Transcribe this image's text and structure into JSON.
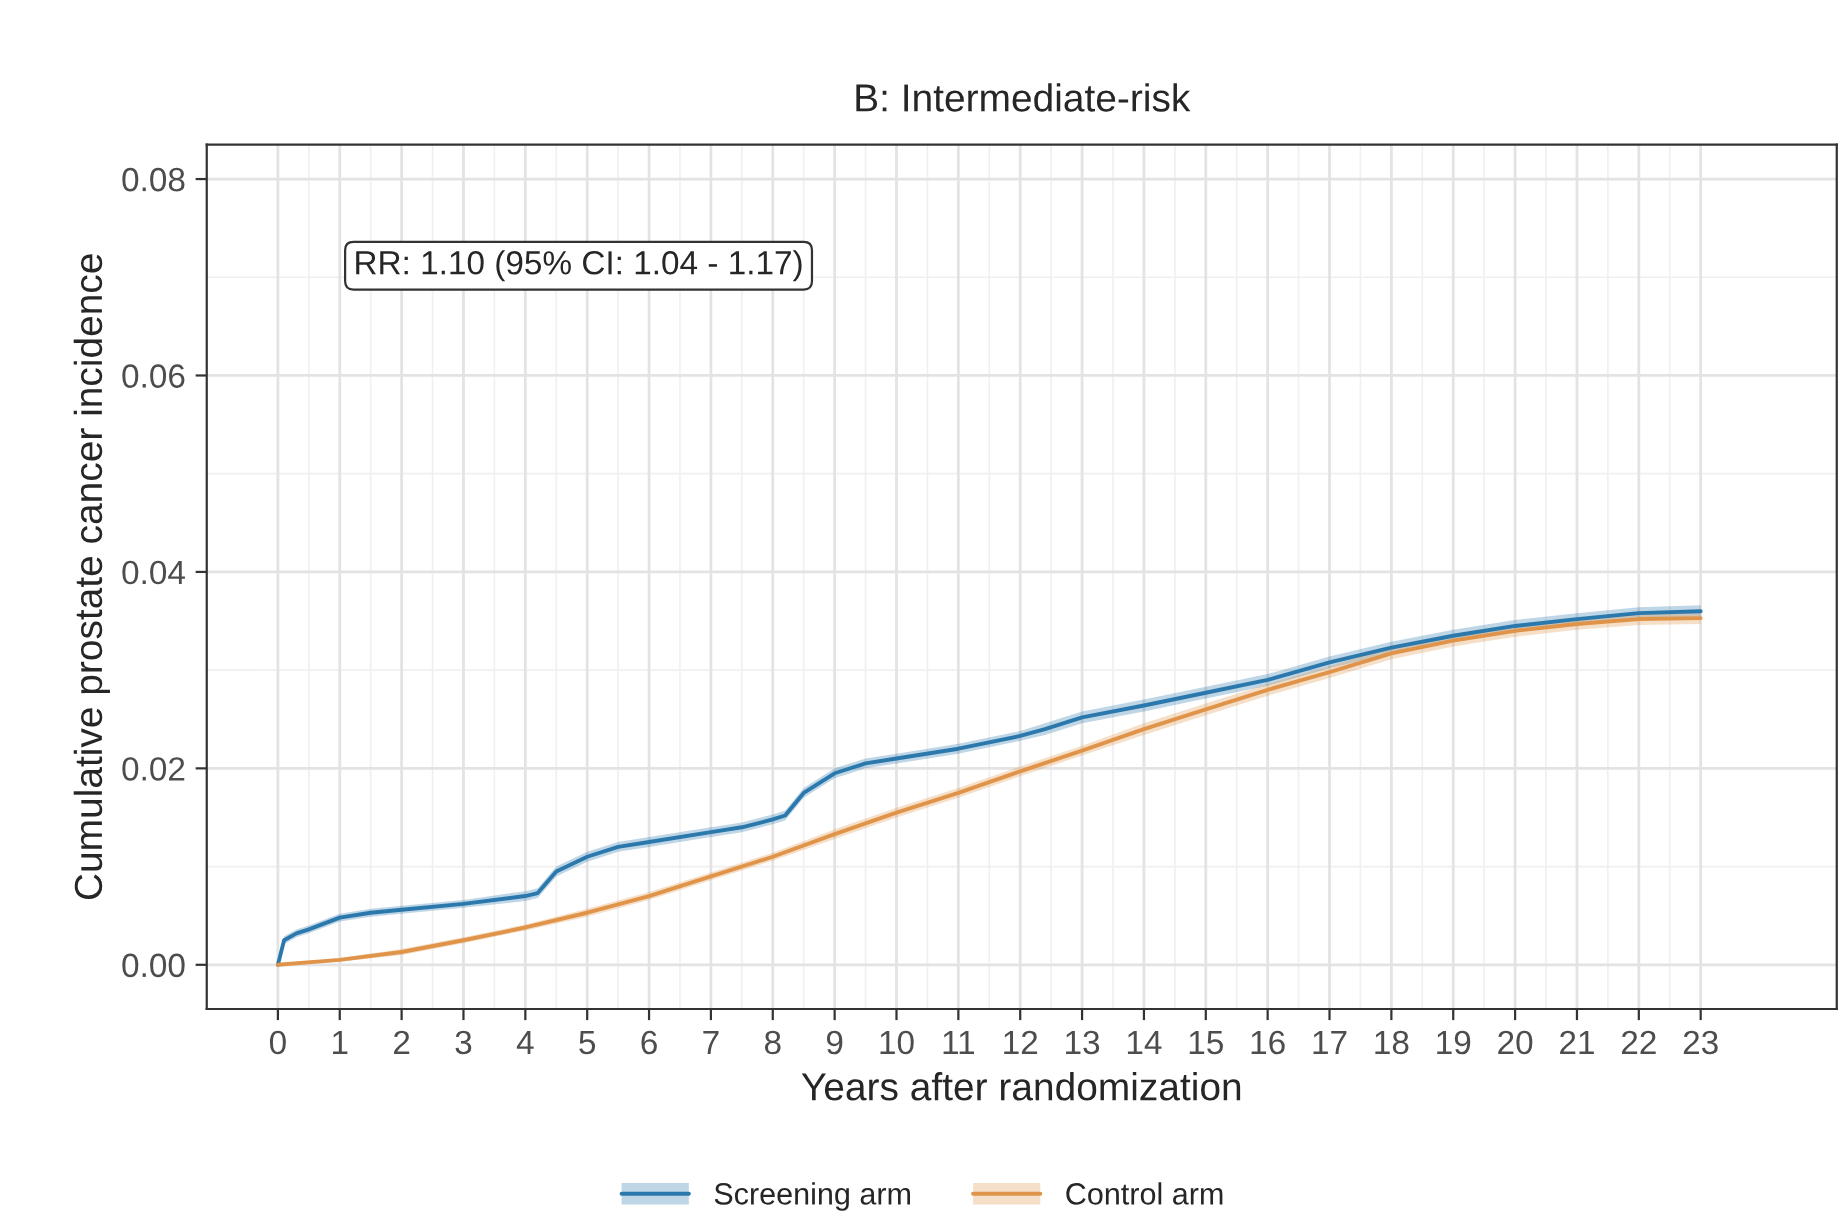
{
  "chart_data": {
    "type": "line",
    "title": "B: Intermediate-risk",
    "xlabel": "Years after randomization",
    "ylabel": "Cumulative prostate cancer incidence",
    "xlim": [
      -1.15,
      25.2
    ],
    "ylim": [
      -0.0045,
      0.0835
    ],
    "xticks": [
      0,
      1,
      2,
      3,
      4,
      5,
      6,
      7,
      8,
      9,
      10,
      11,
      12,
      13,
      14,
      15,
      16,
      17,
      18,
      19,
      20,
      21,
      22,
      23
    ],
    "yticks": [
      {
        "value": 0,
        "label": "0.00"
      },
      {
        "value": 0.02,
        "label": "0.02"
      },
      {
        "value": 0.04,
        "label": "0.04"
      },
      {
        "value": 0.06,
        "label": "0.06"
      },
      {
        "value": 0.08,
        "label": "0.08"
      }
    ],
    "grid": true,
    "legend": "bottom",
    "marker": "none",
    "line_style": "solid",
    "annotations": [
      "RR: 1.10 (95% CI: 1.04 - 1.17)"
    ],
    "series": [
      {
        "name": "Screening arm",
        "color": "#2b78ad",
        "x": [
          0,
          0.1,
          0.3,
          0.5,
          1,
          1.5,
          2,
          3,
          4,
          4.2,
          4.5,
          5,
          5.5,
          6,
          7,
          7.5,
          8,
          8.2,
          8.5,
          9,
          9.5,
          10,
          11,
          12,
          12.4,
          13,
          14,
          15,
          16,
          17,
          18,
          19,
          20,
          21,
          22,
          23
        ],
        "values": [
          0,
          0.0025,
          0.0032,
          0.0036,
          0.0048,
          0.0053,
          0.0056,
          0.0062,
          0.007,
          0.0073,
          0.0095,
          0.011,
          0.012,
          0.0125,
          0.0135,
          0.014,
          0.0148,
          0.0152,
          0.0175,
          0.0195,
          0.0205,
          0.021,
          0.022,
          0.0233,
          0.024,
          0.0252,
          0.0264,
          0.0277,
          0.029,
          0.0308,
          0.0323,
          0.0335,
          0.0345,
          0.0352,
          0.0358,
          0.036
        ],
        "lower": [
          0,
          0.0021,
          0.0028,
          0.0032,
          0.0044,
          0.0049,
          0.0052,
          0.0058,
          0.0065,
          0.0068,
          0.009,
          0.0105,
          0.0115,
          0.012,
          0.013,
          0.0135,
          0.0143,
          0.0147,
          0.017,
          0.019,
          0.02,
          0.0205,
          0.0215,
          0.0228,
          0.0234,
          0.0246,
          0.0258,
          0.0271,
          0.0284,
          0.0302,
          0.0317,
          0.0329,
          0.0339,
          0.0346,
          0.0352,
          0.0354
        ],
        "upper": [
          0,
          0.0029,
          0.0036,
          0.004,
          0.0052,
          0.0057,
          0.006,
          0.0066,
          0.0075,
          0.0078,
          0.01,
          0.0115,
          0.0125,
          0.013,
          0.014,
          0.0145,
          0.0153,
          0.0157,
          0.018,
          0.02,
          0.021,
          0.0215,
          0.0225,
          0.0238,
          0.0246,
          0.0258,
          0.027,
          0.0283,
          0.0296,
          0.0314,
          0.0329,
          0.0341,
          0.0351,
          0.0358,
          0.0364,
          0.0366
        ]
      },
      {
        "name": "Control arm",
        "color": "#e0944a",
        "x": [
          0,
          1,
          2,
          3,
          4,
          5,
          6,
          7,
          8,
          9,
          10,
          11,
          12,
          13,
          14,
          15,
          16,
          17,
          18,
          19,
          20,
          21,
          22,
          23
        ],
        "values": [
          0,
          0.0005,
          0.0013,
          0.0025,
          0.0038,
          0.0053,
          0.007,
          0.009,
          0.011,
          0.0133,
          0.0155,
          0.0175,
          0.0197,
          0.0218,
          0.024,
          0.026,
          0.028,
          0.0298,
          0.0317,
          0.033,
          0.034,
          0.0347,
          0.0352,
          0.0353
        ],
        "lower": [
          0,
          0.0003,
          0.001,
          0.0022,
          0.0035,
          0.0049,
          0.0066,
          0.0086,
          0.0106,
          0.0128,
          0.015,
          0.017,
          0.0192,
          0.0213,
          0.0234,
          0.0254,
          0.0274,
          0.0292,
          0.0311,
          0.0324,
          0.0334,
          0.0341,
          0.0346,
          0.0347
        ],
        "upper": [
          0,
          0.0007,
          0.0016,
          0.0028,
          0.0041,
          0.0057,
          0.0074,
          0.0094,
          0.0114,
          0.0138,
          0.016,
          0.018,
          0.0202,
          0.0223,
          0.0246,
          0.0266,
          0.0286,
          0.0304,
          0.0323,
          0.0336,
          0.0346,
          0.0353,
          0.0358,
          0.0359
        ]
      }
    ]
  }
}
